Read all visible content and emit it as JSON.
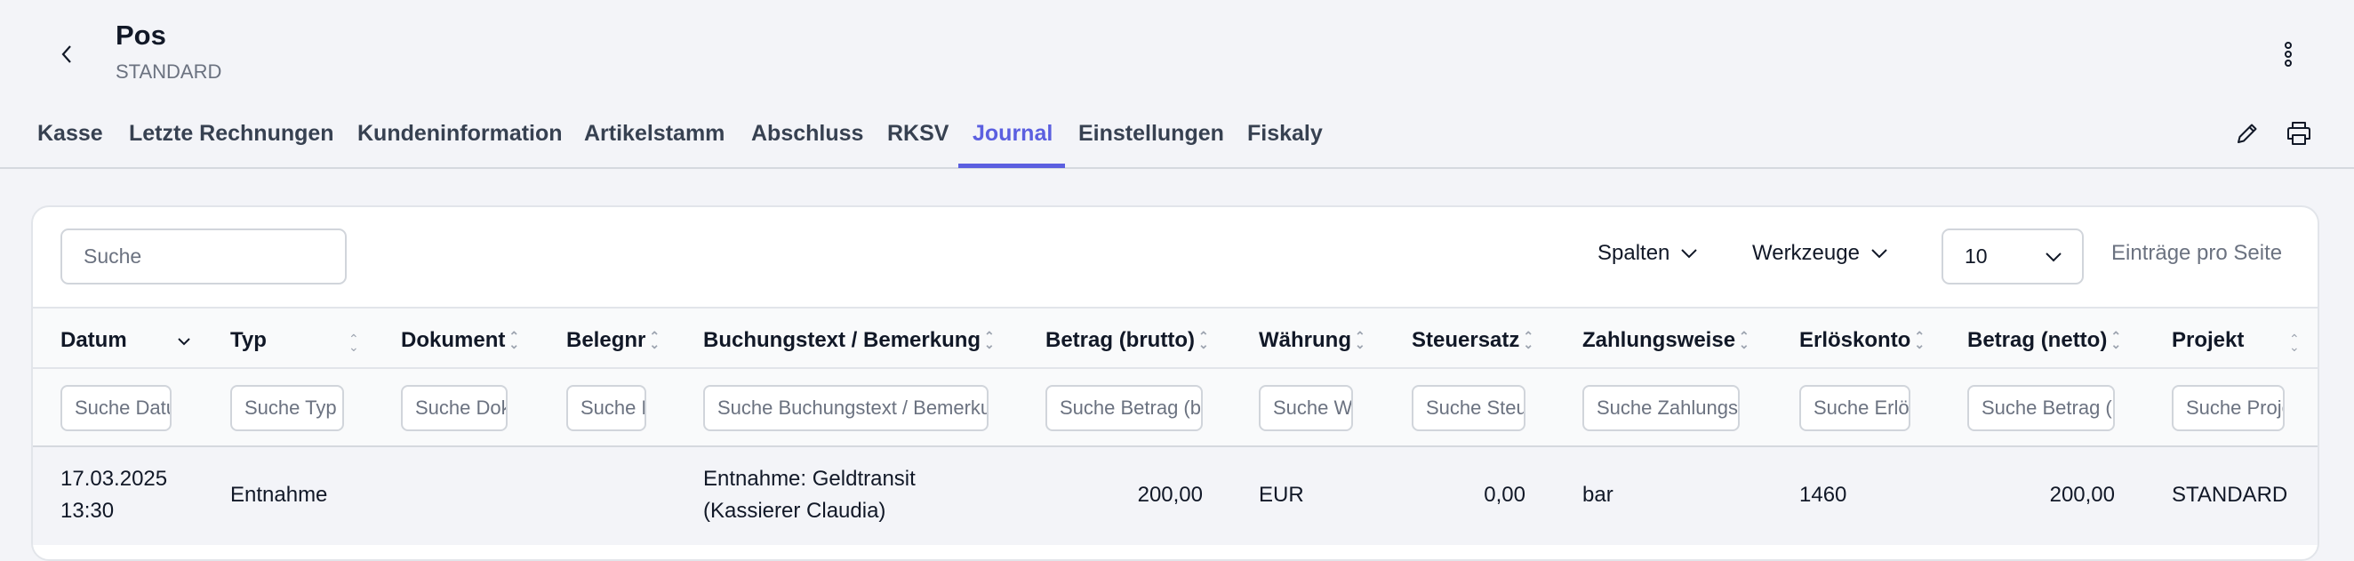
{
  "header": {
    "title": "Pos",
    "subtitle": "STANDARD"
  },
  "tabs": [
    {
      "label": "Kasse"
    },
    {
      "label": "Letzte Rechnungen"
    },
    {
      "label": "Kundeninformation"
    },
    {
      "label": "Artikelstamm"
    },
    {
      "label": "Abschluss"
    },
    {
      "label": "RKSV"
    },
    {
      "label": "Journal",
      "active": true
    },
    {
      "label": "Einstellungen"
    },
    {
      "label": "Fiskaly"
    }
  ],
  "toolbar": {
    "search_placeholder": "Suche",
    "columns_label": "Spalten",
    "tools_label": "Werkzeuge",
    "page_size": "10",
    "page_size_label": "Einträge pro Seite"
  },
  "columns": [
    {
      "label": "Datum",
      "filter": "Suche Datum"
    },
    {
      "label": "Typ",
      "filter": "Suche Typ"
    },
    {
      "label": "Dokument",
      "filter": "Suche Dokument"
    },
    {
      "label": "Belegnr",
      "filter": "Suche Belegnr"
    },
    {
      "label": "Buchungstext / Bemerkung",
      "filter": "Suche Buchungstext / Bemerkung"
    },
    {
      "label": "Betrag (brutto)",
      "filter": "Suche Betrag (brutto)"
    },
    {
      "label": "Währung",
      "filter": "Suche Währung"
    },
    {
      "label": "Steuersatz",
      "filter": "Suche Steuersatz"
    },
    {
      "label": "Zahlungsweise",
      "filter": "Suche Zahlungsweise"
    },
    {
      "label": "Erlöskonto",
      "filter": "Suche Erlöskonto"
    },
    {
      "label": "Betrag (netto)",
      "filter": "Suche Betrag (netto)"
    },
    {
      "label": "Projekt",
      "filter": "Suche Projekt"
    }
  ],
  "rows": [
    {
      "datum_date": "17.03.2025",
      "datum_time": "13:30",
      "typ": "Entnahme",
      "dokument": "",
      "belegnr": "",
      "text_line1": "Entnahme: Geldtransit",
      "text_line2": "(Kassierer Claudia)",
      "brutto": "200,00",
      "waehrung": "EUR",
      "steuersatz": "0,00",
      "zahlungsweise": "bar",
      "erloeskonto": "1460",
      "netto": "200,00",
      "projekt": "STANDARD"
    }
  ],
  "colors": {
    "accent": "#5b5fe0",
    "text": "#111827",
    "background": "#f3f4f8"
  }
}
